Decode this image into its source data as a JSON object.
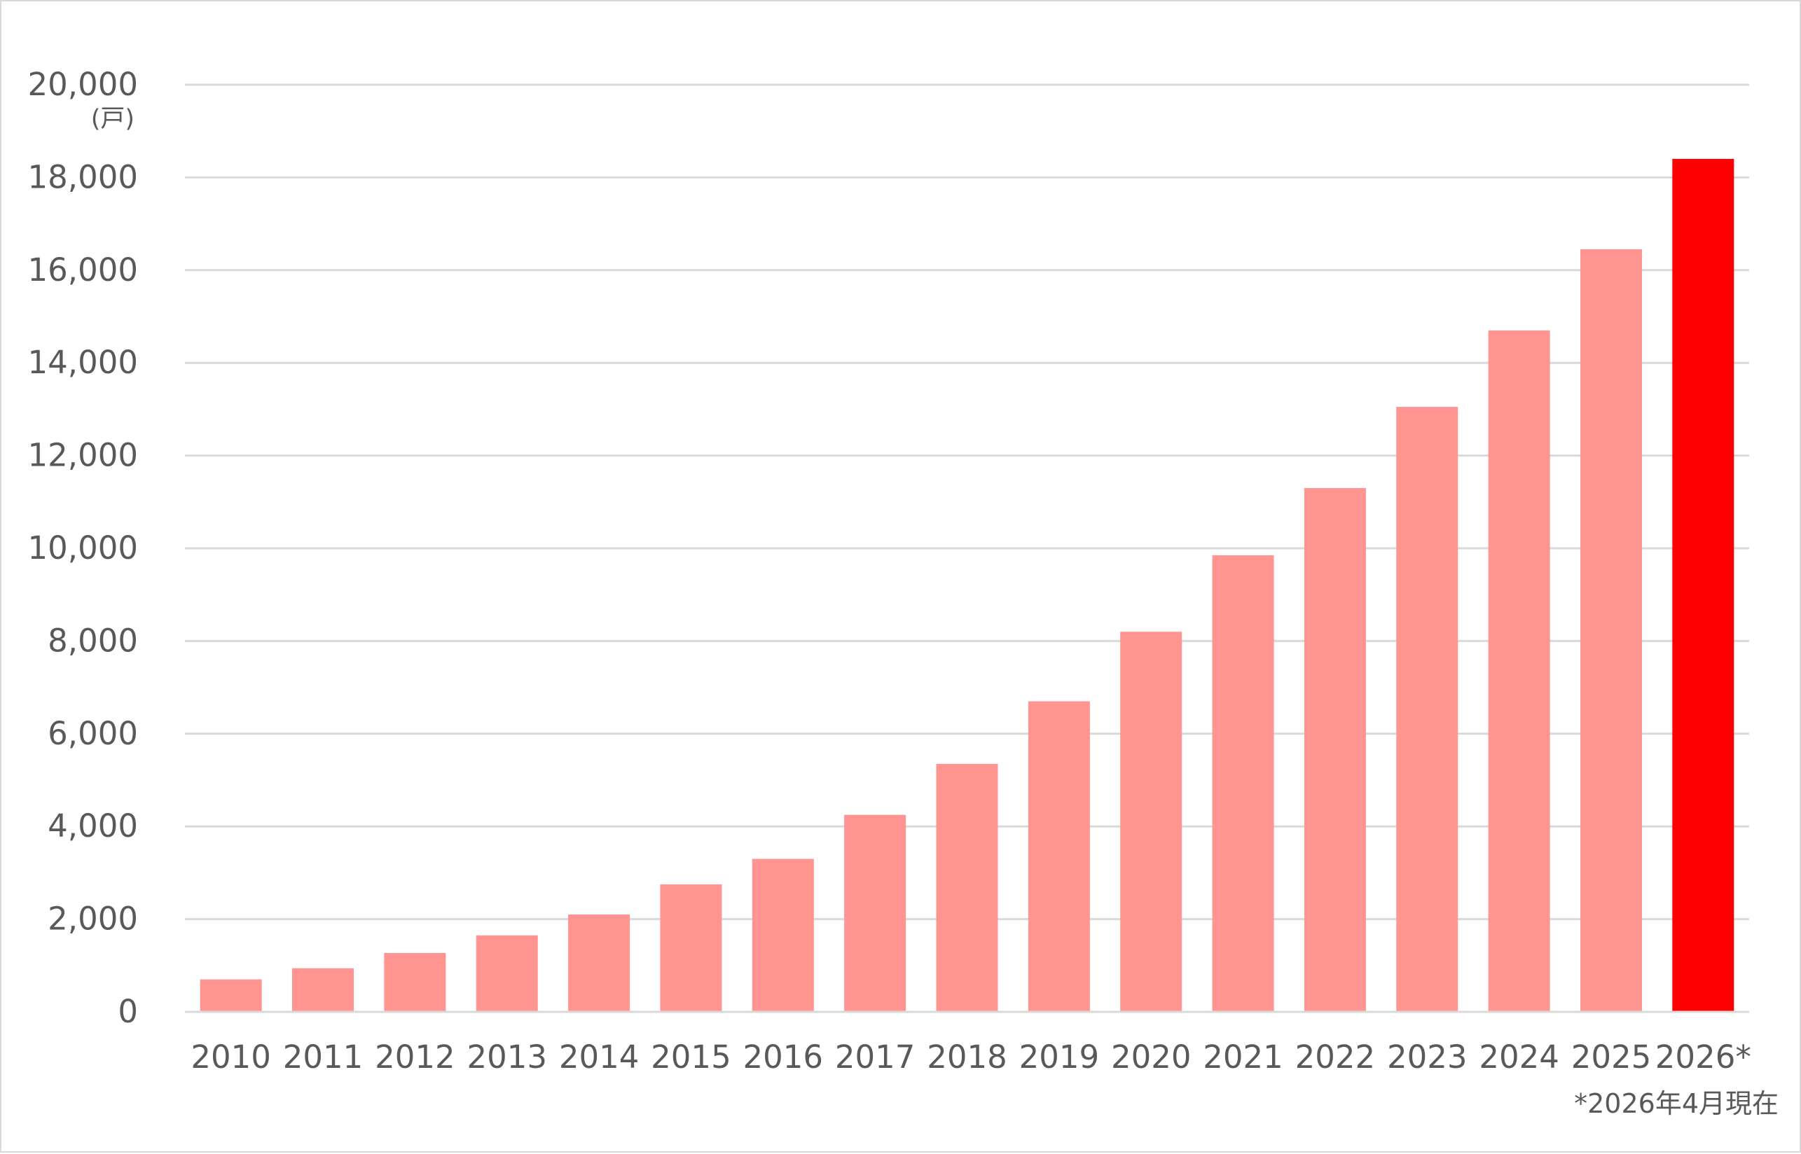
{
  "chart_data": {
    "type": "bar",
    "unit_label": "(戸)",
    "categories": [
      "2010",
      "2011",
      "2012",
      "2013",
      "2014",
      "2015",
      "2016",
      "2017",
      "2018",
      "2019",
      "2020",
      "2021",
      "2022",
      "2023",
      "2024",
      "2025",
      "2026*"
    ],
    "values": [
      700,
      940,
      1270,
      1650,
      2100,
      2750,
      3300,
      4250,
      5350,
      6700,
      8200,
      9850,
      11300,
      13050,
      14700,
      16450,
      18400
    ],
    "ylim": [
      0,
      20000
    ],
    "yticks": [
      0,
      2000,
      4000,
      6000,
      8000,
      10000,
      12000,
      14000,
      16000,
      18000,
      20000
    ],
    "ytick_labels": [
      "0",
      "2,000",
      "4,000",
      "6,000",
      "8,000",
      "10,000",
      "12,000",
      "14,000",
      "16,000",
      "18,000",
      "20,000"
    ],
    "grid": true,
    "colors": {
      "bar": "#ff9490",
      "highlight": "#ff0000",
      "grid": "#d9d9d9",
      "text": "#595959"
    },
    "highlight_index": 16,
    "footnote": "*2026年4月現在"
  }
}
